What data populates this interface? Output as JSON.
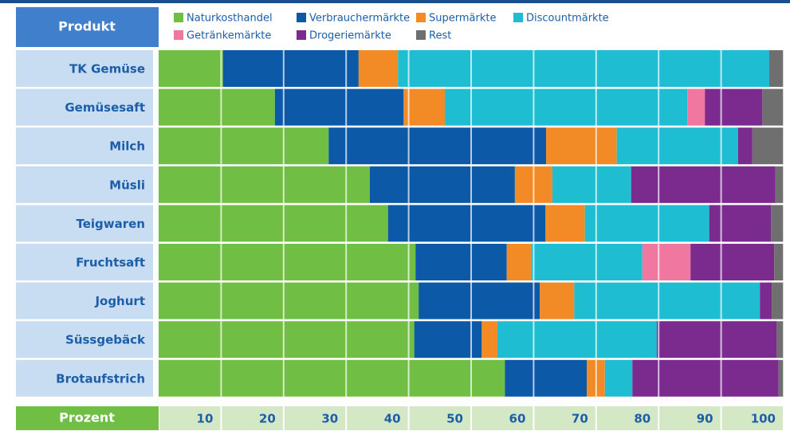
{
  "chart_data": {
    "type": "stacked-bar-horizontal",
    "category_header": "Produkt",
    "axis_header": "Prozent",
    "categories": [
      "TK Gemüse",
      "Gemüsesaft",
      "Milch",
      "Müsli",
      "Teigwaren",
      "Fruchtsaft",
      "Joghurt",
      "Süssgebäck",
      "Brotaufstrich"
    ],
    "series": [
      {
        "name": "Naturkosthandel",
        "color": "#70bf44",
        "values": [
          10.3,
          18.6,
          27.2,
          33.8,
          36.7,
          41.1,
          41.6,
          40.9,
          55.4
        ]
      },
      {
        "name": "Verbrauchermärkte",
        "color": "#0b59a7",
        "values": [
          21.7,
          20.6,
          34.8,
          23.2,
          25.2,
          14.6,
          19.4,
          10.8,
          13.1
        ]
      },
      {
        "name": "Supermärkte",
        "color": "#f28a26",
        "values": [
          6.3,
          6.6,
          11.3,
          6.0,
          6.3,
          3.9,
          5.5,
          2.5,
          2.9
        ]
      },
      {
        "name": "Discountmärkte",
        "color": "#1fbdd2",
        "values": [
          59.4,
          38.8,
          19.4,
          12.6,
          19.9,
          17.8,
          29.7,
          25.5,
          4.4
        ]
      },
      {
        "name": "Getränkemärkte",
        "color": "#ef77a0",
        "values": [
          0,
          2.8,
          0,
          0,
          0,
          7.7,
          0,
          0,
          0
        ]
      },
      {
        "name": "Drogeriemärkte",
        "color": "#7b2a8e",
        "values": [
          0,
          9.2,
          2.3,
          23.1,
          9.9,
          13.4,
          1.9,
          19.2,
          23.4
        ]
      },
      {
        "name": "Rest",
        "color": "#6f6f6f",
        "values": [
          2.3,
          3.4,
          5.0,
          1.3,
          2.0,
          1.5,
          1.9,
          1.1,
          0.8
        ]
      }
    ],
    "xlim": [
      0,
      100
    ],
    "xticks": [
      10,
      20,
      30,
      40,
      50,
      60,
      70,
      80,
      90,
      100
    ],
    "grid": true
  }
}
